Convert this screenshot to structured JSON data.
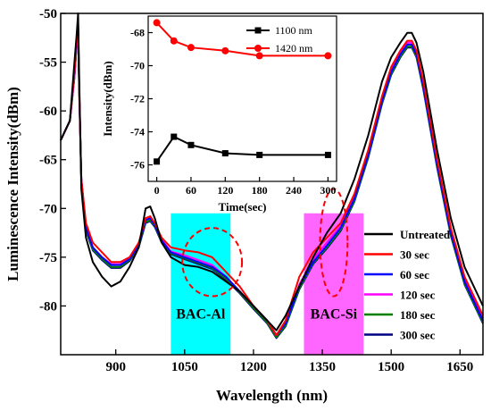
{
  "chart_data": [
    {
      "type": "line",
      "xlabel": "Wavelength (nm)",
      "ylabel": "Luminescence Intensity(dBm)",
      "xlim": [
        780,
        1700
      ],
      "ylim": [
        -85,
        -50
      ],
      "xticks": [
        900,
        1050,
        1200,
        1350,
        1500,
        1650
      ],
      "yticks": [
        -50,
        -55,
        -60,
        -65,
        -70,
        -75,
        -80
      ],
      "grid": false,
      "legend_position": "bottom-right",
      "series": [
        {
          "name": "Untreated",
          "color": "#000000",
          "x": [
            780,
            800,
            810,
            815,
            818,
            820,
            825,
            835,
            850,
            870,
            890,
            910,
            930,
            950,
            965,
            975,
            985,
            1000,
            1020,
            1050,
            1080,
            1110,
            1140,
            1170,
            1200,
            1230,
            1250,
            1270,
            1300,
            1330,
            1360,
            1390,
            1420,
            1450,
            1480,
            1500,
            1520,
            1535,
            1545,
            1555,
            1570,
            1600,
            1630,
            1660,
            1690,
            1700
          ],
          "y": [
            -63,
            -61,
            -55,
            -52,
            -50,
            -56,
            -68,
            -73,
            -75.5,
            -77,
            -78,
            -77.5,
            -76,
            -74,
            -70,
            -69.8,
            -71,
            -73.5,
            -75,
            -75.8,
            -76,
            -76.5,
            -77.5,
            -78.5,
            -80,
            -81.5,
            -82.5,
            -81,
            -78,
            -75,
            -72.5,
            -70.5,
            -67,
            -62.5,
            -57,
            -54.5,
            -53,
            -52,
            -52,
            -53,
            -56,
            -64,
            -71,
            -76,
            -79,
            -80
          ]
        },
        {
          "name": "30 sec",
          "color": "#ff0000",
          "x": [
            780,
            800,
            810,
            815,
            818,
            820,
            825,
            835,
            850,
            870,
            890,
            910,
            930,
            950,
            965,
            975,
            985,
            1000,
            1020,
            1050,
            1080,
            1110,
            1140,
            1170,
            1200,
            1230,
            1250,
            1270,
            1300,
            1330,
            1360,
            1390,
            1420,
            1450,
            1480,
            1500,
            1520,
            1535,
            1545,
            1555,
            1570,
            1600,
            1630,
            1660,
            1690,
            1700
          ],
          "y": [
            -63,
            -61,
            -56,
            -52.5,
            -51,
            -57,
            -67,
            -71.5,
            -73.5,
            -74.5,
            -75.5,
            -75.5,
            -75,
            -73.5,
            -71,
            -70.8,
            -71.5,
            -73,
            -74,
            -74.3,
            -74.5,
            -75,
            -76.5,
            -78,
            -80,
            -81.5,
            -83,
            -81.5,
            -77,
            -74.5,
            -73,
            -71.5,
            -68.5,
            -64,
            -58.5,
            -55.5,
            -53.8,
            -52.8,
            -52.8,
            -53.8,
            -57,
            -65,
            -72,
            -77,
            -80,
            -81
          ]
        },
        {
          "name": "60 sec",
          "color": "#0000ff",
          "x": [
            780,
            800,
            810,
            815,
            818,
            820,
            825,
            835,
            850,
            870,
            890,
            910,
            930,
            950,
            965,
            975,
            985,
            1000,
            1020,
            1050,
            1080,
            1110,
            1140,
            1170,
            1200,
            1230,
            1250,
            1270,
            1300,
            1330,
            1360,
            1390,
            1420,
            1450,
            1480,
            1500,
            1520,
            1535,
            1545,
            1555,
            1570,
            1600,
            1630,
            1660,
            1690,
            1700
          ],
          "y": [
            -63,
            -61,
            -56,
            -52.5,
            -51,
            -57,
            -67,
            -72,
            -74,
            -75,
            -75.8,
            -75.8,
            -75.2,
            -73.8,
            -71.2,
            -71,
            -71.7,
            -73.3,
            -74.5,
            -75,
            -75.5,
            -76,
            -77,
            -78.5,
            -80,
            -81.5,
            -83,
            -81.8,
            -78,
            -75.5,
            -73.8,
            -72,
            -69,
            -64.5,
            -59,
            -56,
            -54.2,
            -53.2,
            -53.2,
            -54.2,
            -57.5,
            -65.5,
            -72.5,
            -77.5,
            -80.5,
            -81.5
          ]
        },
        {
          "name": "120 sec",
          "color": "#ff00ff",
          "x": [
            780,
            800,
            810,
            815,
            818,
            820,
            825,
            835,
            850,
            870,
            890,
            910,
            930,
            950,
            965,
            975,
            985,
            1000,
            1020,
            1050,
            1080,
            1110,
            1140,
            1170,
            1200,
            1230,
            1250,
            1270,
            1300,
            1330,
            1360,
            1390,
            1420,
            1450,
            1480,
            1500,
            1520,
            1535,
            1545,
            1555,
            1570,
            1600,
            1630,
            1660,
            1690,
            1700
          ],
          "y": [
            -63,
            -61,
            -56.5,
            -53,
            -51.5,
            -57.5,
            -67,
            -72,
            -74,
            -75,
            -75.7,
            -75.7,
            -75.1,
            -73.7,
            -71.2,
            -71,
            -71.6,
            -73.2,
            -74.4,
            -74.8,
            -75.3,
            -75.8,
            -77,
            -78.5,
            -80,
            -81.5,
            -83,
            -81.7,
            -77.8,
            -75.2,
            -73.5,
            -71.8,
            -68.8,
            -64.3,
            -58.8,
            -55.8,
            -54,
            -53,
            -53,
            -54,
            -57.3,
            -65.3,
            -72.3,
            -77.3,
            -80.3,
            -81.3
          ]
        },
        {
          "name": "180 sec",
          "color": "#008000",
          "x": [
            780,
            800,
            810,
            815,
            818,
            820,
            825,
            835,
            850,
            870,
            890,
            910,
            930,
            950,
            965,
            975,
            985,
            1000,
            1020,
            1050,
            1080,
            1110,
            1140,
            1170,
            1200,
            1230,
            1250,
            1270,
            1300,
            1330,
            1360,
            1390,
            1420,
            1450,
            1480,
            1500,
            1520,
            1535,
            1545,
            1555,
            1570,
            1600,
            1630,
            1660,
            1690,
            1700
          ],
          "y": [
            -63,
            -61,
            -56.5,
            -53,
            -51.5,
            -57.5,
            -67,
            -72.2,
            -74.2,
            -75.2,
            -76,
            -76,
            -75.3,
            -73.9,
            -71.4,
            -71.2,
            -71.8,
            -73.4,
            -74.6,
            -75.1,
            -75.6,
            -76.1,
            -77.2,
            -78.6,
            -80.2,
            -81.7,
            -83.2,
            -82,
            -78.2,
            -75.6,
            -74,
            -72.2,
            -69.2,
            -64.7,
            -59.2,
            -56.2,
            -54.4,
            -53.4,
            -53.4,
            -54.4,
            -57.7,
            -65.7,
            -72.7,
            -77.7,
            -80.7,
            -81.7
          ]
        },
        {
          "name": "300 sec",
          "color": "#000080",
          "x": [
            780,
            800,
            810,
            815,
            818,
            820,
            825,
            835,
            850,
            870,
            890,
            910,
            930,
            950,
            965,
            975,
            985,
            1000,
            1020,
            1050,
            1080,
            1110,
            1140,
            1170,
            1200,
            1230,
            1250,
            1270,
            1300,
            1330,
            1360,
            1390,
            1420,
            1450,
            1480,
            1500,
            1520,
            1535,
            1545,
            1555,
            1570,
            1600,
            1630,
            1660,
            1690,
            1700
          ],
          "y": [
            -63,
            -61,
            -56.5,
            -53,
            -51.5,
            -57.5,
            -67,
            -72.3,
            -74.3,
            -75.3,
            -76.1,
            -76.1,
            -75.4,
            -74,
            -71.5,
            -71.3,
            -71.9,
            -73.5,
            -74.7,
            -75.2,
            -75.7,
            -76.2,
            -77.3,
            -78.7,
            -80.3,
            -81.8,
            -83.3,
            -82.1,
            -78.3,
            -75.7,
            -74.1,
            -72.3,
            -69.3,
            -64.8,
            -59.3,
            -56.3,
            -54.5,
            -53.5,
            -53.5,
            -54.5,
            -57.8,
            -65.8,
            -72.8,
            -77.8,
            -80.8,
            -81.8
          ]
        }
      ],
      "annotations": [
        {
          "text": "BAC-Al",
          "x_range": [
            1020,
            1150
          ],
          "color": "#00ffff"
        },
        {
          "text": "BAC-Si",
          "x_range": [
            1310,
            1440
          ],
          "color": "#ff66ff"
        }
      ],
      "ellipses": [
        {
          "cx": 1110,
          "cy": -75.5,
          "rx": 65,
          "ry": 3.5,
          "color": "#ff0000"
        },
        {
          "cx": 1375,
          "cy": -73.5,
          "rx": 30,
          "ry": 5.5,
          "color": "#ff0000"
        }
      ]
    },
    {
      "type": "line",
      "xlabel": "Time(sec)",
      "ylabel": "Intensity(dBm)",
      "xlim": [
        -15,
        315
      ],
      "ylim": [
        -77,
        -67
      ],
      "xticks": [
        0,
        60,
        120,
        180,
        240,
        300
      ],
      "yticks": [
        -68,
        -70,
        -72,
        -74,
        -76
      ],
      "legend_position": "top-right",
      "series": [
        {
          "name": "1100 nm",
          "color": "#000000",
          "marker": "square",
          "x": [
            0,
            30,
            60,
            120,
            180,
            300
          ],
          "y": [
            -75.8,
            -74.3,
            -74.8,
            -75.3,
            -75.4,
            -75.4
          ]
        },
        {
          "name": "1420 nm",
          "color": "#ff0000",
          "marker": "circle",
          "x": [
            0,
            30,
            60,
            120,
            180,
            300
          ],
          "y": [
            -67.4,
            -68.5,
            -68.9,
            -69.1,
            -69.4,
            -69.4
          ]
        }
      ]
    }
  ]
}
